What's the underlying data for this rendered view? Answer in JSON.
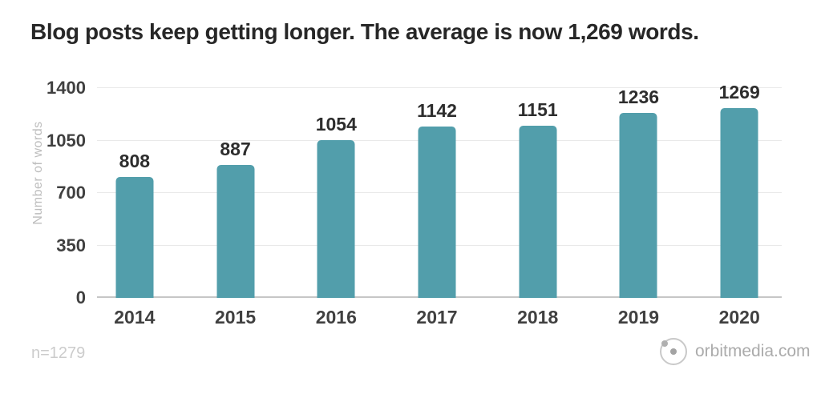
{
  "title": "Blog posts keep getting longer. The average is now 1,269 words.",
  "chart_data": {
    "type": "bar",
    "categories": [
      "2014",
      "2015",
      "2016",
      "2017",
      "2018",
      "2019",
      "2020"
    ],
    "values": [
      808,
      887,
      1054,
      1142,
      1151,
      1236,
      1269
    ],
    "title": "Blog posts keep getting longer. The average is now 1,269 words.",
    "xlabel": "",
    "ylabel": "Number of words",
    "ylim": [
      0,
      1400
    ],
    "yticks": [
      0,
      350,
      700,
      1050,
      1400
    ],
    "grid": "horizontal",
    "legend": "none",
    "data_labels": true,
    "bar_color": "#529EAB"
  },
  "footer": {
    "sample_note": "n=1279",
    "brand": "orbitmedia.com",
    "logo_icon": "orbit-logo"
  },
  "colors": {
    "bar": "#529EAB",
    "title_text": "#272727",
    "axis_text": "#404040",
    "value_text": "#2d2d2d",
    "muted_text": "#bdbdbd",
    "gridline": "#e9e9e9",
    "baseline": "#c6c6c6",
    "background": "#ffffff"
  }
}
